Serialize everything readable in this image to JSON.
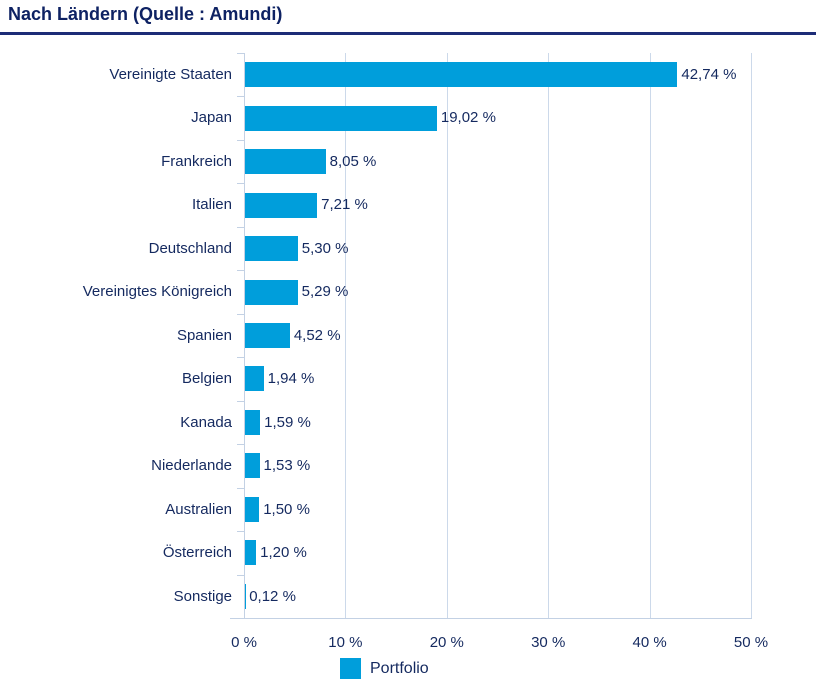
{
  "title": "Nach Ländern (Quelle : Amundi)",
  "colors": {
    "bar": "#009edb",
    "navy": "#14295f",
    "navy_dark": "#0e2263",
    "title_rule": "#1d2c77",
    "grid": "#ccd9ea",
    "axis": "#c3d1e4"
  },
  "legend": {
    "label": "Portfolio",
    "swatch": "portfolio-swatch"
  },
  "chart_data": {
    "type": "bar",
    "orientation": "horizontal",
    "title": "Nach Ländern (Quelle : Amundi)",
    "categories": [
      "Vereinigte Staaten",
      "Japan",
      "Frankreich",
      "Italien",
      "Deutschland",
      "Vereinigtes Königreich",
      "Spanien",
      "Belgien",
      "Kanada",
      "Niederlande",
      "Australien",
      "Österreich",
      "Sonstige"
    ],
    "values": [
      42.74,
      19.02,
      8.05,
      7.21,
      5.3,
      5.29,
      4.52,
      1.94,
      1.59,
      1.53,
      1.5,
      1.2,
      0.12
    ],
    "value_labels": [
      "42,74 %",
      "19,02 %",
      "8,05 %",
      "7,21 %",
      "5,30 %",
      "5,29 %",
      "4,52 %",
      "1,94 %",
      "1,59 %",
      "1,53 %",
      "1,50 %",
      "1,20 %",
      "0,12 %"
    ],
    "series": [
      {
        "name": "Portfolio",
        "values": [
          42.74,
          19.02,
          8.05,
          7.21,
          5.3,
          5.29,
          4.52,
          1.94,
          1.59,
          1.53,
          1.5,
          1.2,
          0.12
        ]
      }
    ],
    "xlim": [
      0,
      50
    ],
    "x_ticks": [
      0,
      10,
      20,
      30,
      40,
      50
    ],
    "x_tick_labels": [
      "0 %",
      "10 %",
      "20 %",
      "30 %",
      "40 %",
      "50 %"
    ],
    "xlabel": "",
    "ylabel": "",
    "grid": "vertical",
    "legend_entries": [
      "Portfolio"
    ],
    "legend_position": "bottom"
  }
}
